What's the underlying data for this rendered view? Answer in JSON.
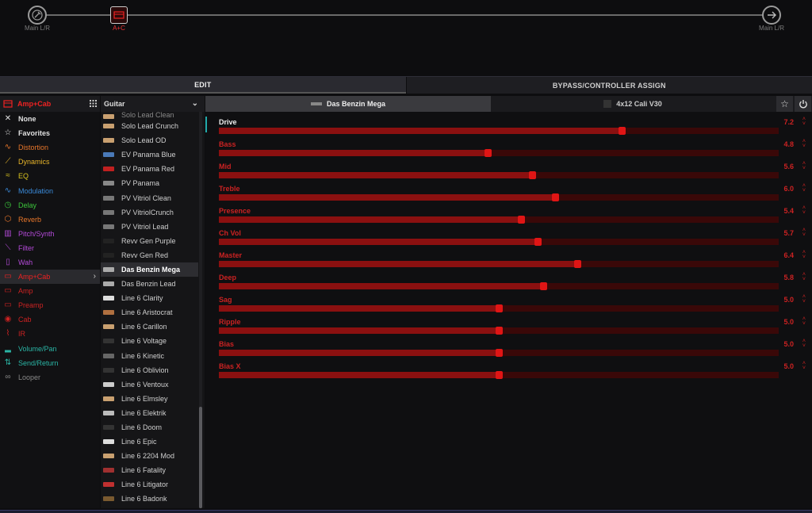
{
  "signal_path": {
    "input_label": "Main L/R",
    "block_label": "A+C",
    "output_label": "Main L/R"
  },
  "tabs": [
    {
      "label": "EDIT",
      "active": true
    },
    {
      "label": "BYPASS/CONTROLLER ASSIGN",
      "active": false
    }
  ],
  "categories": {
    "header": "Amp+Cab",
    "items": [
      {
        "label": "None",
        "icon": "x-icon",
        "glyph": "✕",
        "color": "#e0e0e0"
      },
      {
        "label": "Favorites",
        "icon": "star-icon",
        "glyph": "☆",
        "color": "#e0e0e0"
      },
      {
        "label": "Distortion",
        "icon": "distortion-icon",
        "glyph": "∿",
        "color": "#e8762a"
      },
      {
        "label": "Dynamics",
        "icon": "dynamics-icon",
        "glyph": "⟋",
        "color": "#e8b52a"
      },
      {
        "label": "EQ",
        "icon": "eq-icon",
        "glyph": "≈",
        "color": "#d9c21e"
      },
      {
        "label": "Modulation",
        "icon": "modulation-icon",
        "glyph": "∿",
        "color": "#3a8ad9"
      },
      {
        "label": "Delay",
        "icon": "delay-icon",
        "glyph": "◷",
        "color": "#3bc43b"
      },
      {
        "label": "Reverb",
        "icon": "reverb-icon",
        "glyph": "⬡",
        "color": "#e8762a"
      },
      {
        "label": "Pitch/Synth",
        "icon": "pitch-icon",
        "glyph": "▥",
        "color": "#b44ad9"
      },
      {
        "label": "Filter",
        "icon": "filter-icon",
        "glyph": "⟍",
        "color": "#b44ad9"
      },
      {
        "label": "Wah",
        "icon": "wah-icon",
        "glyph": "▯",
        "color": "#b44ad9"
      },
      {
        "label": "Amp+Cab",
        "icon": "amp-cab-icon",
        "glyph": "▭",
        "color": "#e22",
        "selected": true
      },
      {
        "label": "Amp",
        "icon": "amp-icon",
        "glyph": "▭",
        "color": "#c22"
      },
      {
        "label": "Preamp",
        "icon": "preamp-icon",
        "glyph": "▭",
        "color": "#c22"
      },
      {
        "label": "Cab",
        "icon": "cab-icon",
        "glyph": "◉",
        "color": "#c22"
      },
      {
        "label": "IR",
        "icon": "ir-icon",
        "glyph": "⌇",
        "color": "#c22"
      },
      {
        "label": "Volume/Pan",
        "icon": "volume-icon",
        "glyph": "▂",
        "color": "#2ab5a5"
      },
      {
        "label": "Send/Return",
        "icon": "send-return-icon",
        "glyph": "⇅",
        "color": "#2ab5a5"
      },
      {
        "label": "Looper",
        "icon": "looper-icon",
        "glyph": "∞",
        "color": "#888"
      }
    ]
  },
  "models": {
    "header": "Guitar",
    "items": [
      {
        "label": "Solo Lead Clean",
        "thumb": "#c9a070"
      },
      {
        "label": "Solo Lead Crunch",
        "thumb": "#c9a070"
      },
      {
        "label": "Solo Lead OD",
        "thumb": "#c9a070"
      },
      {
        "label": "EV Panama Blue",
        "thumb": "#4a7ab8"
      },
      {
        "label": "EV Panama Red",
        "thumb": "#c02020"
      },
      {
        "label": "PV Panama",
        "thumb": "#888"
      },
      {
        "label": "PV Vitriol Clean",
        "thumb": "#777"
      },
      {
        "label": "PV VitriolCrunch",
        "thumb": "#777"
      },
      {
        "label": "PV Vitriol Lead",
        "thumb": "#777"
      },
      {
        "label": "Revv Gen Purple",
        "thumb": "#222"
      },
      {
        "label": "Revv Gen Red",
        "thumb": "#222"
      },
      {
        "label": "Das Benzin Mega",
        "thumb": "#aaa",
        "selected": true
      },
      {
        "label": "Das Benzin Lead",
        "thumb": "#aaa"
      },
      {
        "label": "Line 6 Clarity",
        "thumb": "#ddd"
      },
      {
        "label": "Line 6 Aristocrat",
        "thumb": "#b07040"
      },
      {
        "label": "Line 6 Carillon",
        "thumb": "#c9a070"
      },
      {
        "label": "Line 6 Voltage",
        "thumb": "#333"
      },
      {
        "label": "Line 6 Kinetic",
        "thumb": "#666"
      },
      {
        "label": "Line 6 Oblivion",
        "thumb": "#333"
      },
      {
        "label": "Line 6 Ventoux",
        "thumb": "#ccc"
      },
      {
        "label": "Line 6 Elmsley",
        "thumb": "#c9a070"
      },
      {
        "label": "Line 6 Elektrik",
        "thumb": "#bbb"
      },
      {
        "label": "Line 6 Doom",
        "thumb": "#333"
      },
      {
        "label": "Line 6 Epic",
        "thumb": "#ddd"
      },
      {
        "label": "Line 6 2204 Mod",
        "thumb": "#c9a070"
      },
      {
        "label": "Line 6 Fatality",
        "thumb": "#a03030"
      },
      {
        "label": "Line 6 Litigator",
        "thumb": "#c03030"
      },
      {
        "label": "Line 6 Badonk",
        "thumb": "#7a5a30"
      }
    ]
  },
  "block_tabs": {
    "amp_label": "Das Benzin Mega",
    "cab_label": "4x12 Cali V30"
  },
  "params": [
    {
      "name": "Drive",
      "value": "7.2",
      "level": 0.72,
      "active": true
    },
    {
      "name": "Bass",
      "value": "4.8",
      "level": 0.48
    },
    {
      "name": "Mid",
      "value": "5.6",
      "level": 0.56
    },
    {
      "name": "Treble",
      "value": "6.0",
      "level": 0.6
    },
    {
      "name": "Presence",
      "value": "5.4",
      "level": 0.54
    },
    {
      "name": "Ch Vol",
      "value": "5.7",
      "level": 0.57
    },
    {
      "name": "Master",
      "value": "6.4",
      "level": 0.64
    },
    {
      "name": "Deep",
      "value": "5.8",
      "level": 0.58
    },
    {
      "name": "Sag",
      "value": "5.0",
      "level": 0.5
    },
    {
      "name": "Ripple",
      "value": "5.0",
      "level": 0.5
    },
    {
      "name": "Bias",
      "value": "5.0",
      "level": 0.5
    },
    {
      "name": "Bias X",
      "value": "5.0",
      "level": 0.5
    }
  ],
  "colors": {
    "accent_red": "#e01515",
    "track_red": "#3a0808",
    "fill_red": "#8b1010"
  }
}
